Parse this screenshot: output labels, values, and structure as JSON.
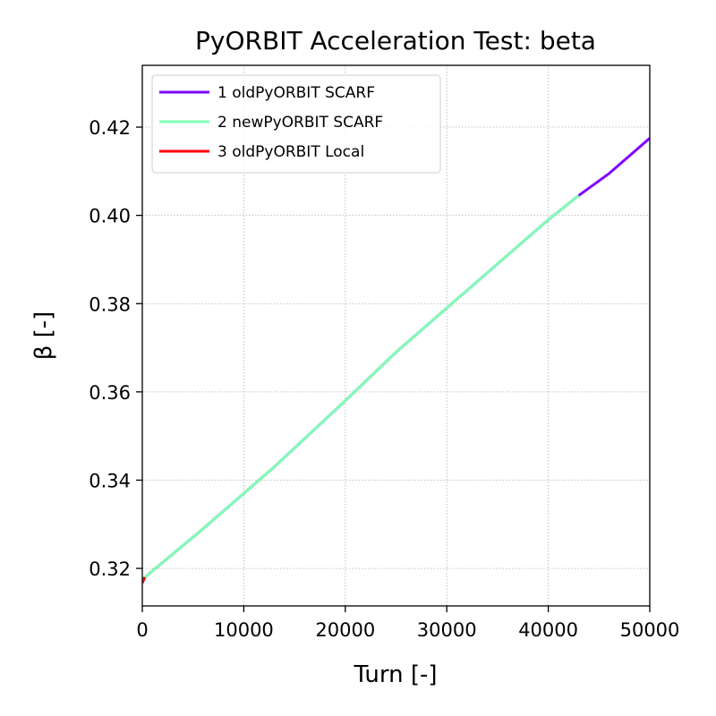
{
  "chart_data": {
    "type": "line",
    "title": "PyORBIT Acceleration Test: beta",
    "xlabel": "Turn [-]",
    "ylabel": "β [-]",
    "xlim": [
      0,
      50000
    ],
    "ylim": [
      0.3115,
      0.434
    ],
    "xticks": [
      0,
      10000,
      20000,
      30000,
      40000,
      50000
    ],
    "xtick_labels": [
      "0",
      "10000",
      "20000",
      "30000",
      "40000",
      "50000"
    ],
    "yticks": [
      0.32,
      0.34,
      0.36,
      0.38,
      0.4,
      0.42
    ],
    "ytick_labels": [
      "0.32",
      "0.34",
      "0.36",
      "0.38",
      "0.40",
      "0.42"
    ],
    "grid": true,
    "legend_position": "top-left",
    "series": [
      {
        "name": "1 oldPyORBIT SCARF",
        "color": "#8000ff",
        "x": [
          0,
          6000,
          13000,
          20000,
          25000,
          30000,
          35000,
          40000,
          43000,
          46000,
          50000
        ],
        "y": [
          0.3175,
          0.329,
          0.343,
          0.358,
          0.369,
          0.379,
          0.389,
          0.399,
          0.4045,
          0.4095,
          0.4175
        ]
      },
      {
        "name": "2 newPyORBIT SCARF",
        "color": "#80ffb4",
        "x": [
          0,
          6000,
          13000,
          20000,
          25000,
          30000,
          35000,
          40000,
          43000
        ],
        "y": [
          0.3175,
          0.329,
          0.343,
          0.358,
          0.369,
          0.379,
          0.389,
          0.399,
          0.4045
        ]
      },
      {
        "name": "3 oldPyORBIT Local",
        "color": "#ff0000",
        "x": [
          0,
          250
        ],
        "y": [
          0.3167,
          0.318
        ]
      }
    ]
  }
}
